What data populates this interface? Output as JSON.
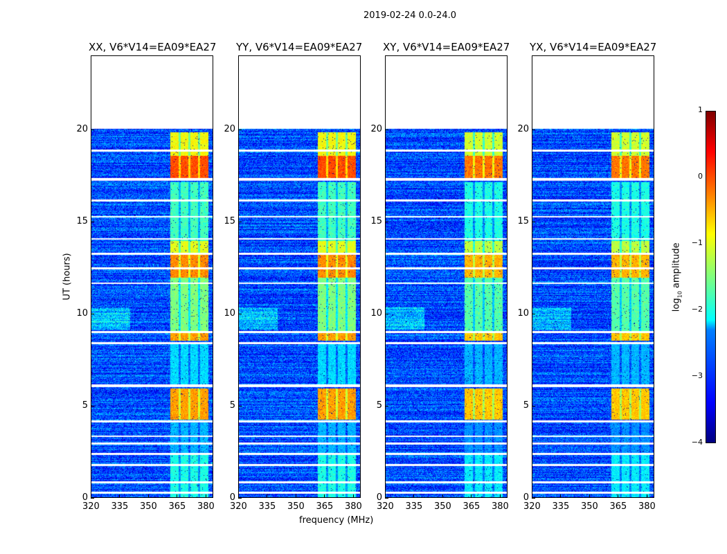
{
  "chart_data": {
    "type": "heatmap",
    "suptitle": "2019-02-24 0.0-24.0",
    "xlabel": "frequency (MHz)",
    "ylabel": "UT (hours)",
    "xlim": [
      320,
      384
    ],
    "ylim": [
      0,
      24
    ],
    "xticks": [
      "320",
      "335",
      "350",
      "365",
      "380"
    ],
    "yticks": [
      "0",
      "5",
      "10",
      "15",
      "20"
    ],
    "panels": [
      {
        "title": "XX, V6*V14=EA09*EA27",
        "id": "xx"
      },
      {
        "title": "YY, V6*V14=EA09*EA27",
        "id": "yy"
      },
      {
        "title": "XY, V6*V14=EA09*EA27",
        "id": "xy"
      },
      {
        "title": "YX, V6*V14=EA09*EA27",
        "id": "yx"
      }
    ],
    "data_end_hour": 20.05,
    "background_log_amp": -3.0,
    "signal_band_mhz": [
      361,
      381
    ],
    "subband_gaps_mhz": [
      366,
      371,
      376
    ],
    "signal_levels": [
      {
        "hours": [
          0,
          2.5
        ],
        "log_amp": -2.0
      },
      {
        "hours": [
          2.5,
          4.2
        ],
        "log_amp": -2.5
      },
      {
        "hours": [
          4.3,
          6.0
        ],
        "log_amp": -0.4
      },
      {
        "hours": [
          6.2,
          8.4
        ],
        "log_amp": -2.3
      },
      {
        "hours": [
          8.6,
          9.0
        ],
        "log_amp": -0.4
      },
      {
        "hours": [
          9.1,
          12.0
        ],
        "log_amp": -1.5
      },
      {
        "hours": [
          12.0,
          13.3
        ],
        "log_amp": -0.3
      },
      {
        "hours": [
          13.3,
          14.0
        ],
        "log_amp": -1.0
      },
      {
        "hours": [
          14.0,
          17.2
        ],
        "log_amp": -1.8
      },
      {
        "hours": [
          17.4,
          18.6
        ],
        "log_amp": 0.0
      },
      {
        "hours": [
          18.6,
          19.9
        ],
        "log_amp": -0.9
      }
    ],
    "flagged_hours": [
      0.35,
      0.9,
      1.85,
      2.45,
      3.0,
      3.4,
      4.2,
      6.1,
      6.15,
      8.45,
      9.05,
      11.7,
      12.5,
      13.3,
      14.1,
      15.3,
      16.2,
      17.3,
      17.35,
      18.9
    ],
    "colorbar": {
      "label": "log10 amplitude",
      "label_main": "log",
      "label_sub": "10",
      "label_rest": " amplitude",
      "range": [
        -4,
        1
      ],
      "ticks": [
        "1",
        "0",
        "−1",
        "−2",
        "−3",
        "−4"
      ]
    }
  }
}
